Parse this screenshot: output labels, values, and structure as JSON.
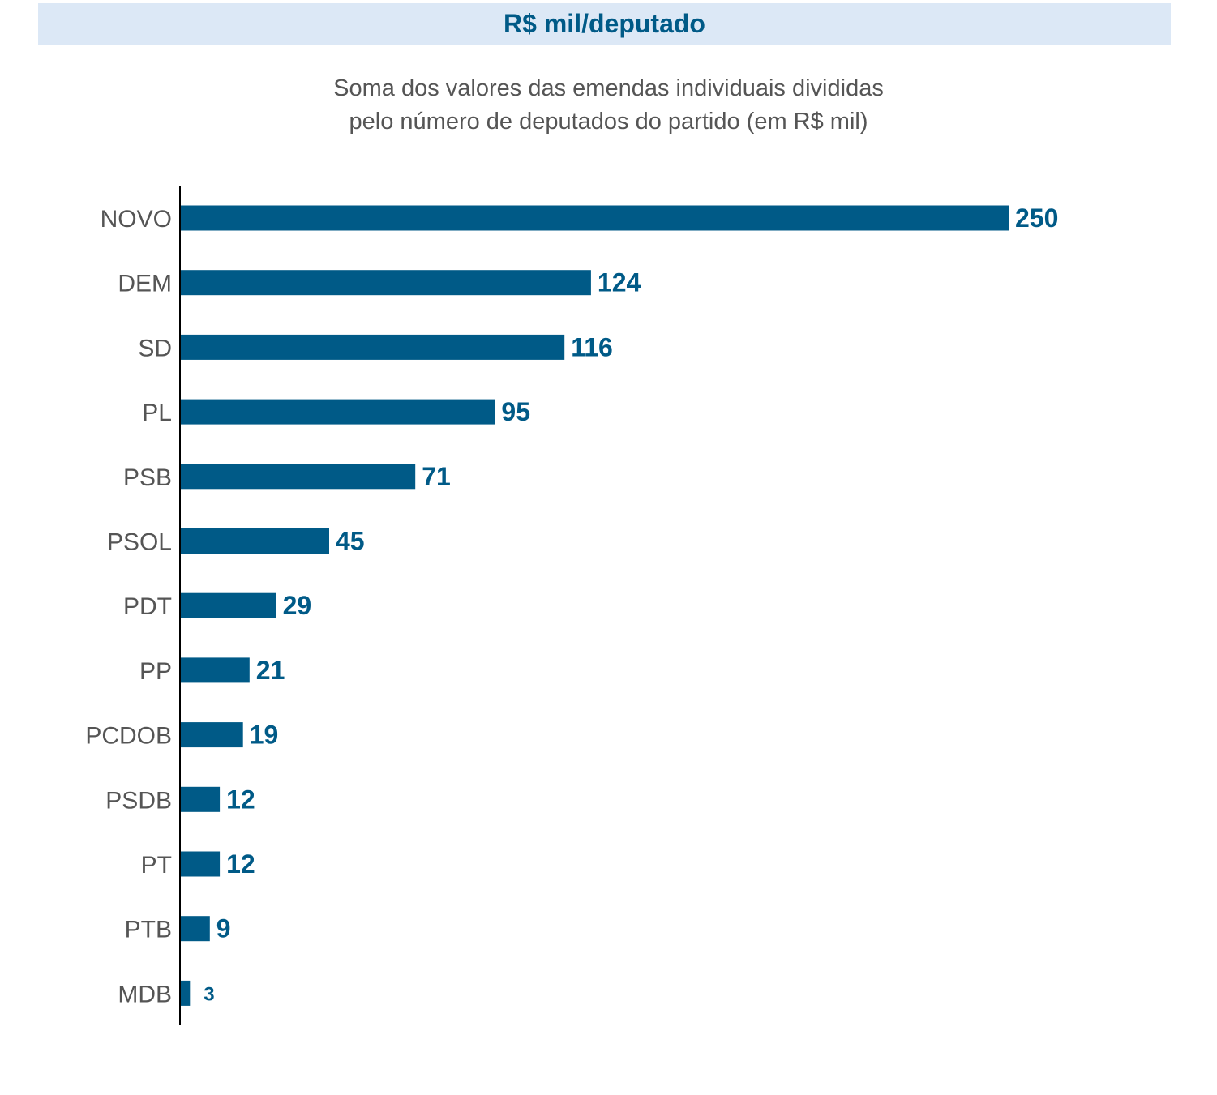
{
  "header": {
    "title": "R$ mil/deputado"
  },
  "subtitle": {
    "line1": "Soma dos valores das emendas individuais divididas",
    "line2": "pelo número de deputados do partido (em R$ mil)"
  },
  "colors": {
    "bar": "#005a87",
    "label": "#555555",
    "header_band": "#dce8f6",
    "axis": "#000000"
  },
  "chart_data": {
    "type": "bar",
    "orientation": "horizontal",
    "title": "R$ mil/deputado",
    "subtitle": "Soma dos valores das emendas individuais divididas pelo número de deputados do partido (em R$ mil)",
    "categories": [
      "NOVO",
      "DEM",
      "SD",
      "PL",
      "PSB",
      "PSOL",
      "PDT",
      "PP",
      "PCDOB",
      "PSDB",
      "PT",
      "PTB",
      "MDB"
    ],
    "values": [
      250,
      124,
      116,
      95,
      71,
      45,
      29,
      21,
      19,
      12,
      12,
      9,
      3
    ],
    "xlabel": "",
    "ylabel": "",
    "xlim": [
      0,
      250
    ],
    "grid": false,
    "legend": "none",
    "data_labels": true
  }
}
